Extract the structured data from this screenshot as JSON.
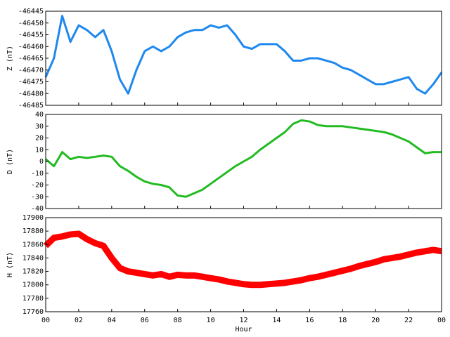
{
  "chart_data": [
    {
      "type": "line",
      "ylabel": "Z (nT)",
      "color": "#1e88ee",
      "band": 3,
      "x": [
        0,
        0.5,
        1,
        1.5,
        2,
        2.5,
        3,
        3.5,
        4,
        4.5,
        5,
        5.5,
        6,
        6.5,
        7,
        7.5,
        8,
        8.5,
        9,
        9.5,
        10,
        10.5,
        11,
        11.5,
        12,
        12.5,
        13,
        13.5,
        14,
        14.5,
        15,
        15.5,
        16,
        16.5,
        17,
        17.5,
        18,
        18.5,
        19,
        19.5,
        20,
        20.5,
        21,
        21.5,
        22,
        22.5,
        23,
        23.5,
        24
      ],
      "values": [
        -46473,
        -46465,
        -46447,
        -46458,
        -46451,
        -46453,
        -46456,
        -46453,
        -46462,
        -46474,
        -46480,
        -46470,
        -46462,
        -46460,
        -46462,
        -46460,
        -46456,
        -46454,
        -46453,
        -46453,
        -46451,
        -46452,
        -46451,
        -46455,
        -46460,
        -46461,
        -46459,
        -46459,
        -46459,
        -46462,
        -46466,
        -46466,
        -46465,
        -46465,
        -46466,
        -46467,
        -46469,
        -46470,
        -46472,
        -46474,
        -46476,
        -46476,
        -46475,
        -46474,
        -46473,
        -46478,
        -46480,
        -46476,
        -46471
      ],
      "xlim": [
        0,
        24
      ],
      "xticks": [
        0,
        2,
        4,
        6,
        8,
        10,
        12,
        14,
        16,
        18,
        20,
        22,
        24
      ],
      "ylim": [
        -46485,
        -46445
      ],
      "yticks": [
        -46485,
        -46480,
        -46475,
        -46470,
        -46465,
        -46460,
        -46455,
        -46450,
        -46445
      ]
    },
    {
      "type": "line",
      "ylabel": "D (nT)",
      "color": "#22bb22",
      "band": 3,
      "x": [
        0,
        0.5,
        1,
        1.5,
        2,
        2.5,
        3,
        3.5,
        4,
        4.5,
        5,
        5.5,
        6,
        6.5,
        7,
        7.5,
        8,
        8.5,
        9,
        9.5,
        10,
        10.5,
        11,
        11.5,
        12,
        12.5,
        13,
        13.5,
        14,
        14.5,
        15,
        15.5,
        16,
        16.5,
        17,
        17.5,
        18,
        18.5,
        19,
        19.5,
        20,
        20.5,
        21,
        21.5,
        22,
        22.5,
        23,
        23.5,
        24
      ],
      "values": [
        2,
        -4,
        8,
        2,
        4,
        3,
        4,
        5,
        4,
        -4,
        -8,
        -13,
        -17,
        -19,
        -20,
        -22,
        -29,
        -30,
        -27,
        -24,
        -19,
        -14,
        -9,
        -4,
        0,
        4,
        10,
        15,
        20,
        25,
        32,
        35,
        34,
        31,
        30,
        30,
        30,
        29,
        28,
        27,
        26,
        25,
        23,
        20,
        17,
        12,
        7,
        8,
        8
      ],
      "xlim": [
        0,
        24
      ],
      "xticks": [
        0,
        2,
        4,
        6,
        8,
        10,
        12,
        14,
        16,
        18,
        20,
        22,
        24
      ],
      "ylim": [
        -40,
        40
      ],
      "yticks": [
        -40,
        -30,
        -20,
        -10,
        0,
        10,
        20,
        30,
        40
      ]
    },
    {
      "type": "line",
      "ylabel": "H (nT)",
      "xlabel": "Hour",
      "color": "#ff0000",
      "band": 9,
      "x": [
        0,
        0.5,
        1,
        1.5,
        2,
        2.5,
        3,
        3.5,
        4,
        4.5,
        5,
        5.5,
        6,
        6.5,
        7,
        7.5,
        8,
        8.5,
        9,
        9.5,
        10,
        10.5,
        11,
        11.5,
        12,
        12.5,
        13,
        13.5,
        14,
        14.5,
        15,
        15.5,
        16,
        16.5,
        17,
        17.5,
        18,
        18.5,
        19,
        19.5,
        20,
        20.5,
        21,
        21.5,
        22,
        22.5,
        23,
        23.5,
        24
      ],
      "values": [
        17858,
        17870,
        17872,
        17875,
        17876,
        17868,
        17862,
        17858,
        17840,
        17825,
        17820,
        17818,
        17816,
        17814,
        17816,
        17812,
        17815,
        17814,
        17814,
        17812,
        17810,
        17808,
        17805,
        17803,
        17801,
        17800,
        17800,
        17801,
        17802,
        17803,
        17805,
        17807,
        17810,
        17812,
        17815,
        17818,
        17821,
        17824,
        17828,
        17831,
        17834,
        17838,
        17840,
        17842,
        17845,
        17848,
        17850,
        17852,
        17850
      ],
      "xlim": [
        0,
        24
      ],
      "xticks": [
        {
          "value": 0,
          "label": "00"
        },
        {
          "value": 2,
          "label": "02"
        },
        {
          "value": 4,
          "label": "04"
        },
        {
          "value": 6,
          "label": "06"
        },
        {
          "value": 8,
          "label": "08"
        },
        10,
        12,
        14,
        16,
        18,
        20,
        22,
        {
          "value": 24,
          "label": "00"
        }
      ],
      "ylim": [
        17760,
        17900
      ],
      "yticks": [
        17760,
        17780,
        17800,
        17820,
        17840,
        17860,
        17880,
        17900
      ]
    }
  ]
}
